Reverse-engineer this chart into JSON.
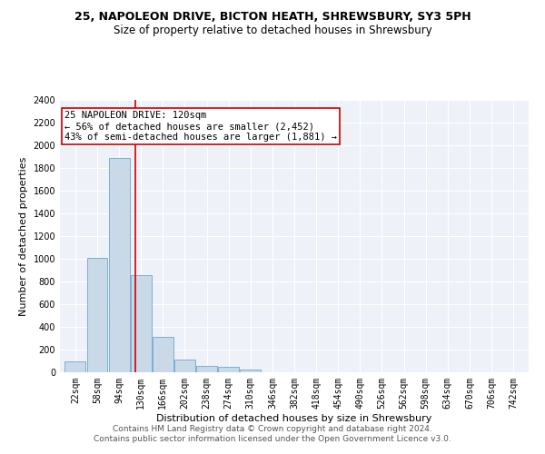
{
  "title": "25, NAPOLEON DRIVE, BICTON HEATH, SHREWSBURY, SY3 5PH",
  "subtitle": "Size of property relative to detached houses in Shrewsbury",
  "xlabel": "Distribution of detached houses by size in Shrewsbury",
  "ylabel": "Number of detached properties",
  "bar_color": "#c9d9e8",
  "bar_edge_color": "#7aafd4",
  "background_color": "#eef2f8",
  "grid_color": "#ffffff",
  "annotation_box_color": "#cc0000",
  "annotation_line_color": "#cc0000",
  "property_line_x": 120,
  "annotation_text_line1": "25 NAPOLEON DRIVE: 120sqm",
  "annotation_text_line2": "← 56% of detached houses are smaller (2,452)",
  "annotation_text_line3": "43% of semi-detached houses are larger (1,881) →",
  "categories": [
    "22sqm",
    "58sqm",
    "94sqm",
    "130sqm",
    "166sqm",
    "202sqm",
    "238sqm",
    "274sqm",
    "310sqm",
    "346sqm",
    "382sqm",
    "418sqm",
    "454sqm",
    "490sqm",
    "526sqm",
    "562sqm",
    "598sqm",
    "634sqm",
    "670sqm",
    "706sqm",
    "742sqm"
  ],
  "bin_edges": [
    22,
    58,
    94,
    130,
    166,
    202,
    238,
    274,
    310,
    346,
    382,
    418,
    454,
    490,
    526,
    562,
    598,
    634,
    670,
    706,
    742
  ],
  "bin_width": 36,
  "values": [
    95,
    1010,
    1890,
    860,
    310,
    115,
    55,
    48,
    25,
    0,
    0,
    0,
    0,
    0,
    0,
    0,
    0,
    0,
    0,
    0,
    0
  ],
  "ylim": [
    0,
    2400
  ],
  "yticks": [
    0,
    200,
    400,
    600,
    800,
    1000,
    1200,
    1400,
    1600,
    1800,
    2000,
    2200,
    2400
  ],
  "footer_line1": "Contains HM Land Registry data © Crown copyright and database right 2024.",
  "footer_line2": "Contains public sector information licensed under the Open Government Licence v3.0.",
  "title_fontsize": 9,
  "subtitle_fontsize": 8.5,
  "xlabel_fontsize": 8,
  "ylabel_fontsize": 8,
  "tick_fontsize": 7,
  "annotation_fontsize": 7.5,
  "footer_fontsize": 6.5
}
